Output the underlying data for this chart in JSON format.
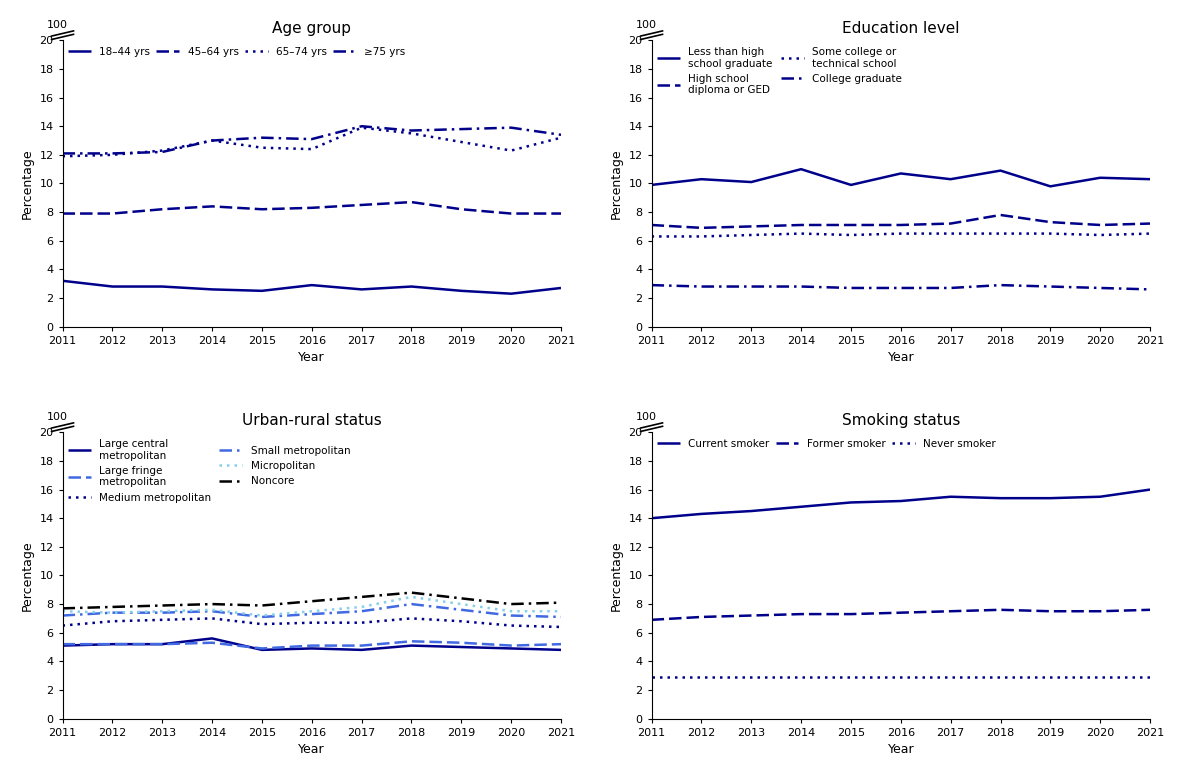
{
  "years": [
    2011,
    2012,
    2013,
    2014,
    2015,
    2016,
    2017,
    2018,
    2019,
    2020,
    2021
  ],
  "age_group": {
    "title": "Age group",
    "series": [
      {
        "label": "18–44 yrs",
        "values": [
          3.2,
          2.8,
          2.8,
          2.6,
          2.5,
          2.9,
          2.6,
          2.8,
          2.5,
          2.3,
          2.7
        ],
        "ls": "solid",
        "color": "#00008B"
      },
      {
        "label": "45–64 yrs",
        "values": [
          7.9,
          7.9,
          8.2,
          8.4,
          8.2,
          8.3,
          8.5,
          8.7,
          8.2,
          7.9,
          7.9
        ],
        "ls": "dashed",
        "color": "#00008B"
      },
      {
        "label": "65–74 yrs",
        "values": [
          11.9,
          12.0,
          12.3,
          13.0,
          12.5,
          12.4,
          13.9,
          13.5,
          12.9,
          12.3,
          13.2
        ],
        "ls": "dotted",
        "color": "#00008B"
      },
      {
        "label": "≥75 yrs",
        "values": [
          12.1,
          12.1,
          12.2,
          13.0,
          13.2,
          13.1,
          14.0,
          13.7,
          13.8,
          13.9,
          13.4
        ],
        "ls": "dashdot",
        "color": "#00008B"
      }
    ]
  },
  "education": {
    "title": "Education level",
    "series": [
      {
        "label": "Less than high\nschool graduate",
        "values": [
          9.9,
          10.3,
          10.1,
          11.0,
          9.9,
          10.7,
          10.3,
          10.9,
          9.8,
          10.4,
          10.3
        ],
        "ls": "solid",
        "color": "#00008B"
      },
      {
        "label": "High school\ndiploma or GED",
        "values": [
          7.1,
          6.9,
          7.0,
          7.1,
          7.1,
          7.1,
          7.2,
          7.8,
          7.3,
          7.1,
          7.2
        ],
        "ls": "dashed",
        "color": "#00008B"
      },
      {
        "label": "Some college or\ntechnical school",
        "values": [
          6.3,
          6.3,
          6.4,
          6.5,
          6.4,
          6.5,
          6.5,
          6.5,
          6.5,
          6.4,
          6.5
        ],
        "ls": "dotted",
        "color": "#00008B"
      },
      {
        "label": "College graduate",
        "values": [
          2.9,
          2.8,
          2.8,
          2.8,
          2.7,
          2.7,
          2.7,
          2.9,
          2.8,
          2.7,
          2.6
        ],
        "ls": "dashdot",
        "color": "#00008B"
      }
    ]
  },
  "urban_rural": {
    "title": "Urban-rural status",
    "series": [
      {
        "label": "Large central\nmetropolitan",
        "values": [
          5.1,
          5.2,
          5.2,
          5.6,
          4.8,
          4.9,
          4.8,
          5.1,
          5.0,
          4.9,
          4.8
        ],
        "ls": "solid",
        "color": "#00008B"
      },
      {
        "label": "Large fringe\nmetropolitan",
        "values": [
          5.2,
          5.2,
          5.2,
          5.3,
          4.9,
          5.1,
          5.1,
          5.4,
          5.3,
          5.1,
          5.2
        ],
        "ls": "dashed",
        "color": "#4169E1"
      },
      {
        "label": "Medium metropolitan",
        "values": [
          6.5,
          6.8,
          6.9,
          7.0,
          6.6,
          6.7,
          6.7,
          7.0,
          6.8,
          6.5,
          6.4
        ],
        "ls": "dotted",
        "color": "#00008B"
      },
      {
        "label": "Small metropolitan",
        "values": [
          7.2,
          7.4,
          7.4,
          7.5,
          7.1,
          7.3,
          7.5,
          8.0,
          7.6,
          7.2,
          7.1
        ],
        "ls": "dashdot",
        "color": "#4169E1"
      },
      {
        "label": "Micropolitan",
        "values": [
          7.5,
          7.4,
          7.5,
          7.6,
          7.2,
          7.5,
          7.8,
          8.5,
          8.0,
          7.5,
          7.5
        ],
        "ls": "dotted",
        "color": "#87CEEB"
      },
      {
        "label": "Noncore",
        "values": [
          7.7,
          7.8,
          7.9,
          8.0,
          7.9,
          8.2,
          8.5,
          8.8,
          8.4,
          8.0,
          8.1
        ],
        "ls": "dashdot",
        "color": "#000000"
      }
    ]
  },
  "smoking": {
    "title": "Smoking status",
    "series": [
      {
        "label": "Current smoker",
        "values": [
          14.0,
          14.3,
          14.5,
          14.8,
          15.1,
          15.2,
          15.5,
          15.4,
          15.4,
          15.5,
          16.0
        ],
        "ls": "solid",
        "color": "#00008B"
      },
      {
        "label": "Former smoker",
        "values": [
          6.9,
          7.1,
          7.2,
          7.3,
          7.3,
          7.4,
          7.5,
          7.6,
          7.5,
          7.5,
          7.6
        ],
        "ls": "dashed",
        "color": "#00008B"
      },
      {
        "label": "Never smoker",
        "values": [
          2.9,
          2.9,
          2.9,
          2.9,
          2.9,
          2.9,
          2.9,
          2.9,
          2.9,
          2.9,
          2.9
        ],
        "ls": "dotted",
        "color": "#00008B"
      }
    ]
  },
  "background_color": "#ffffff",
  "yticks": [
    0,
    2,
    4,
    6,
    8,
    10,
    12,
    14,
    16,
    18,
    20
  ],
  "xlabel": "Year",
  "ylabel": "Percentage"
}
